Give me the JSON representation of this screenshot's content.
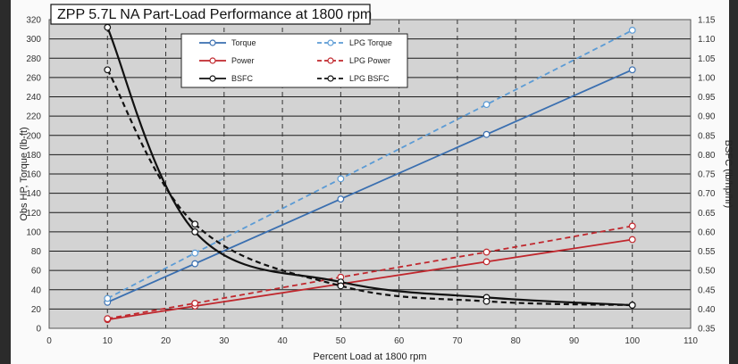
{
  "chart_data": {
    "type": "line",
    "title": "ZPP 5.7L NA Part-Load Performance at 1800 rpm",
    "xlabel": "Percent Load at 1800 rpm",
    "ylabel": "Obs HP, Torque (lb-ft)",
    "y2label": "BSFC (lb/hp/hr)",
    "xlim": [
      0,
      110
    ],
    "ylim": [
      0,
      320
    ],
    "y2lim": [
      0.35,
      1.15
    ],
    "x_ticks": [
      "0",
      "10",
      "20",
      "30",
      "40",
      "50",
      "60",
      "70",
      "80",
      "90",
      "100",
      "110"
    ],
    "y_ticks": [
      "0",
      "20",
      "40",
      "60",
      "80",
      "100",
      "120",
      "140",
      "160",
      "180",
      "200",
      "220",
      "240",
      "260",
      "280",
      "300",
      "320"
    ],
    "y2_ticks": [
      "0.35",
      "0.40",
      "0.45",
      "0.50",
      "0.55",
      "0.60",
      "0.65",
      "0.70",
      "0.75",
      "0.80",
      "0.85",
      "0.90",
      "0.95",
      "1.00",
      "1.05",
      "1.10",
      "1.15"
    ],
    "grid": true,
    "legend_position": "top-center",
    "series": [
      {
        "name": "Torque",
        "axis": "left",
        "color": "#3a6fb0",
        "dash": false,
        "smooth": false,
        "x": [
          10,
          25,
          50,
          75,
          100
        ],
        "y": [
          27,
          67,
          134,
          201,
          268
        ]
      },
      {
        "name": "LPG Torque",
        "axis": "left",
        "color": "#5b9bd5",
        "dash": true,
        "smooth": false,
        "x": [
          10,
          25,
          50,
          75,
          100
        ],
        "y": [
          31,
          78,
          155,
          232,
          309
        ]
      },
      {
        "name": "Power",
        "axis": "left",
        "color": "#c0272d",
        "dash": false,
        "smooth": false,
        "x": [
          10,
          25,
          50,
          75,
          100
        ],
        "y": [
          9,
          23,
          46,
          69,
          92
        ]
      },
      {
        "name": "LPG Power",
        "axis": "left",
        "color": "#c0272d",
        "dash": true,
        "smooth": false,
        "x": [
          10,
          25,
          50,
          75,
          100
        ],
        "y": [
          10,
          26,
          53,
          79,
          106
        ]
      },
      {
        "name": "BSFC",
        "axis": "right",
        "color": "#111111",
        "dash": false,
        "smooth": true,
        "x": [
          10,
          25,
          50,
          75,
          100
        ],
        "y": [
          1.13,
          0.6,
          0.47,
          0.43,
          0.41
        ]
      },
      {
        "name": "LPG BSFC",
        "axis": "right",
        "color": "#111111",
        "dash": true,
        "smooth": true,
        "x": [
          10,
          25,
          50,
          75,
          100
        ],
        "y": [
          1.02,
          0.62,
          0.46,
          0.42,
          0.41
        ]
      }
    ]
  }
}
